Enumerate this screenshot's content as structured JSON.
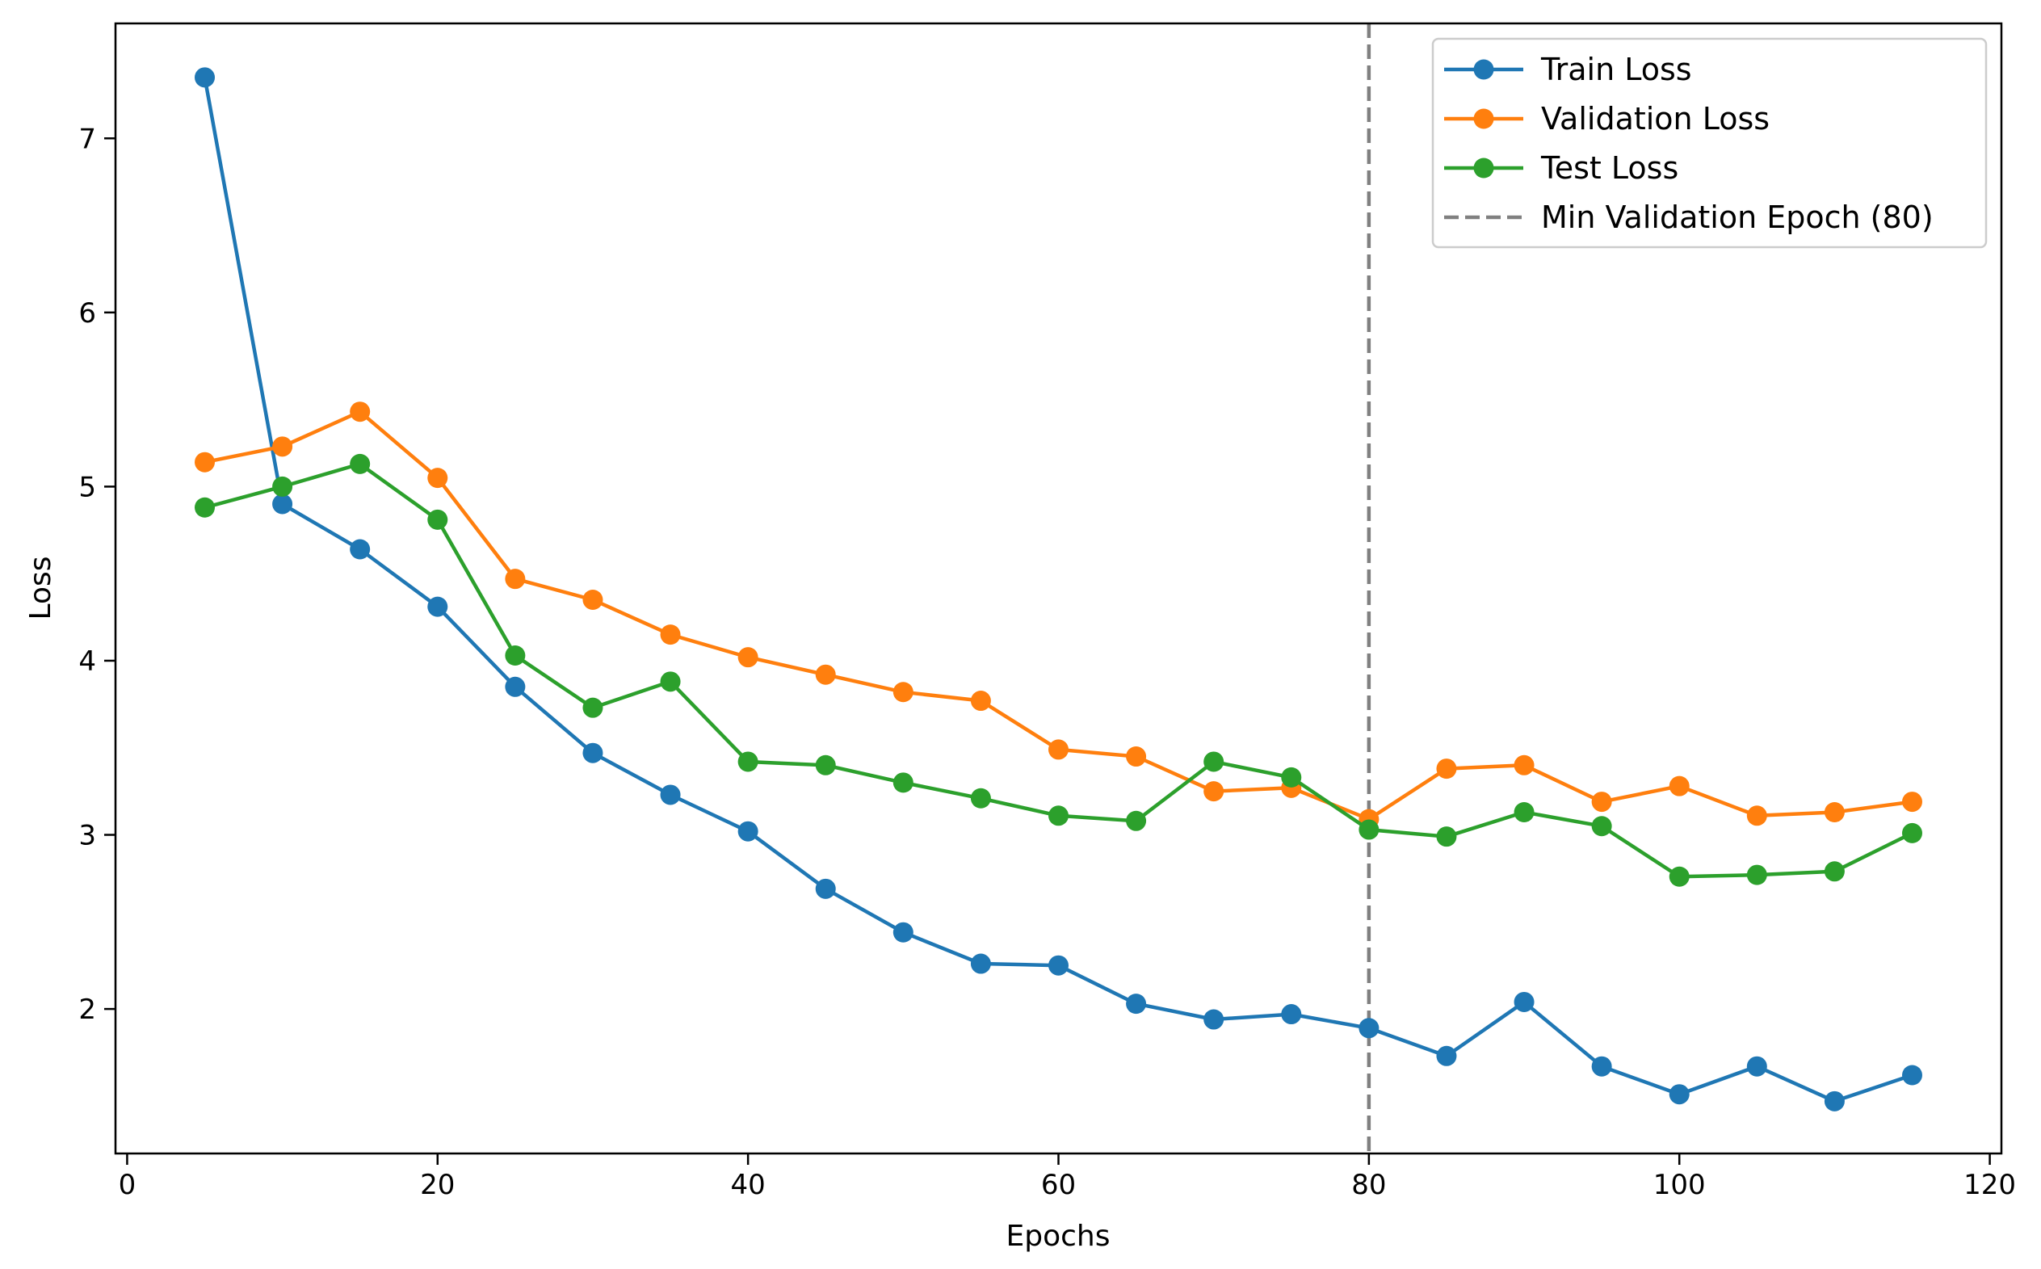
{
  "chart_data": {
    "type": "line",
    "xlabel": "Epochs",
    "ylabel": "Loss",
    "xlim": [
      -0.75,
      120.75
    ],
    "ylim": [
      1.17,
      7.66
    ],
    "xticks": [
      0,
      20,
      40,
      60,
      80,
      100,
      120
    ],
    "yticks": [
      2,
      3,
      4,
      5,
      6,
      7
    ],
    "x": [
      5,
      10,
      15,
      20,
      25,
      30,
      35,
      40,
      45,
      50,
      55,
      60,
      65,
      70,
      75,
      80,
      85,
      90,
      95,
      100,
      105,
      110,
      115
    ],
    "series": [
      {
        "name": "Train Loss",
        "color": "#1f77b4",
        "values": [
          7.35,
          4.9,
          4.64,
          4.31,
          3.85,
          3.47,
          3.23,
          3.02,
          2.69,
          2.44,
          2.26,
          2.25,
          2.03,
          1.94,
          1.97,
          1.89,
          1.73,
          2.04,
          1.67,
          1.51,
          1.67,
          1.47,
          1.62
        ]
      },
      {
        "name": "Validation Loss",
        "color": "#ff7f0e",
        "values": [
          5.14,
          5.23,
          5.43,
          5.05,
          4.47,
          4.35,
          4.15,
          4.02,
          3.92,
          3.82,
          3.77,
          3.49,
          3.45,
          3.25,
          3.27,
          3.09,
          3.38,
          3.4,
          3.19,
          3.28,
          3.11,
          3.13,
          3.19
        ]
      },
      {
        "name": "Test Loss",
        "color": "#2ca02c",
        "values": [
          4.88,
          5.0,
          5.13,
          4.81,
          4.03,
          3.73,
          3.88,
          3.42,
          3.4,
          3.3,
          3.21,
          3.11,
          3.08,
          3.42,
          3.33,
          3.03,
          2.99,
          3.13,
          3.05,
          2.76,
          2.77,
          2.79,
          3.01
        ]
      }
    ],
    "vline": {
      "x": 80,
      "name": "Min Validation Epoch (80)",
      "color": "#808080"
    },
    "legend": "top-right",
    "grid": false
  }
}
